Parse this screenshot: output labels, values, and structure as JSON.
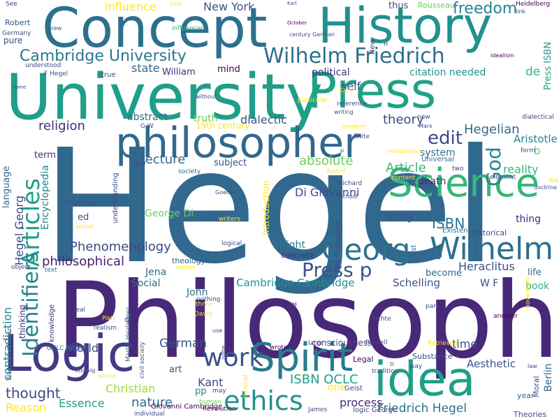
{
  "words": [
    {
      "text": "Hegel",
      "color": "#31688e",
      "vertical": false
    },
    {
      "text": "Philosophy",
      "color": "#482878",
      "vertical": false
    },
    {
      "text": "University",
      "color": "#1f9e89",
      "vertical": false
    },
    {
      "text": "Concept",
      "color": "#2d708e",
      "vertical": false
    },
    {
      "text": "History",
      "color": "#21918c",
      "vertical": false
    },
    {
      "text": "Press",
      "color": "#1fa187",
      "vertical": false
    },
    {
      "text": "philosopher",
      "color": "#31688e",
      "vertical": false
    },
    {
      "text": "Science",
      "color": "#35b779",
      "vertical": false
    },
    {
      "text": "Logic",
      "color": "#443983",
      "vertical": false
    },
    {
      "text": "idea",
      "color": "#1f9e89",
      "vertical": false
    },
    {
      "text": "Spirit",
      "color": "#287c8e",
      "vertical": false
    },
    {
      "text": "Wilhelm",
      "color": "#2d708e",
      "vertical": false
    },
    {
      "text": "Georg",
      "color": "#2c728e",
      "vertical": false
    },
    {
      "text": "ethics",
      "color": "#21918c",
      "vertical": false
    },
    {
      "text": "work",
      "color": "#3b528b",
      "vertical": false
    },
    {
      "text": "Wilhelm Friedrich",
      "color": "#2d708e",
      "vertical": false
    },
    {
      "text": "Articles",
      "color": "#1f9e89",
      "vertical": true
    },
    {
      "text": "Identifiers",
      "color": "#26828e",
      "vertical": true
    },
    {
      "text": "Cambridge University",
      "color": "#2a788e",
      "vertical": false
    },
    {
      "text": "edit",
      "color": "#3e4989",
      "vertical": false
    },
    {
      "text": "God",
      "color": "#25848e",
      "vertical": true
    },
    {
      "text": "Press p",
      "color": "#3b528b",
      "vertical": false
    },
    {
      "text": "freedom",
      "color": "#25848e",
      "vertical": false
    },
    {
      "text": "Hegel Georg",
      "color": "#3e4989",
      "vertical": true
    },
    {
      "text": "religion",
      "color": "#472d7b",
      "vertical": false
    },
    {
      "text": "Phenomenology",
      "color": "#3e4989",
      "vertical": false
    },
    {
      "text": "philosophical",
      "color": "#481f70",
      "vertical": false
    },
    {
      "text": "thought",
      "color": "#3e4989",
      "vertical": false
    },
    {
      "text": "Hegelian",
      "color": "#31688e",
      "vertical": false
    },
    {
      "text": "ISBN",
      "color": "#2c728e",
      "vertical": false
    },
    {
      "text": "ISBN OCLC",
      "color": "#1f9e89",
      "vertical": false
    },
    {
      "text": "Article",
      "color": "#35b779",
      "vertical": false
    },
    {
      "text": "state",
      "color": "#31688e",
      "vertical": false
    },
    {
      "text": "theory",
      "color": "#3e4989",
      "vertical": false
    },
    {
      "text": "German",
      "color": "#3b528b",
      "vertical": false
    },
    {
      "text": "absolute",
      "color": "#6ece58",
      "vertical": false
    },
    {
      "text": "Lecture",
      "color": "#31688e",
      "vertical": false
    },
    {
      "text": "contradiction",
      "color": "#25848e",
      "vertical": true
    },
    {
      "text": "Cambridge Cambridge",
      "color": "#21918c",
      "vertical": false
    },
    {
      "text": "Friedrich Hegel",
      "color": "#2c728e",
      "vertical": false
    },
    {
      "text": "Aesthetic",
      "color": "#3b528b",
      "vertical": false
    },
    {
      "text": "Schelling",
      "color": "#3b528b",
      "vertical": false
    },
    {
      "text": "reality",
      "color": "#35b779",
      "vertical": false
    },
    {
      "text": "Aristotle",
      "color": "#25848e",
      "vertical": false
    },
    {
      "text": "Encyclopedia",
      "color": "#26828e",
      "vertical": true
    },
    {
      "text": "dialectic",
      "color": "#3b528b",
      "vertical": false
    },
    {
      "text": "self",
      "color": "#3e4989",
      "vertical": false
    },
    {
      "text": "political",
      "color": "#472d7b",
      "vertical": false
    },
    {
      "text": "citation needed",
      "color": "#21918c",
      "vertical": false
    },
    {
      "text": "de",
      "color": "#35b779",
      "vertical": false
    },
    {
      "text": "truth",
      "color": "#6ece58",
      "vertical": false
    },
    {
      "text": "abstract",
      "color": "#31688e",
      "vertical": false
    },
    {
      "text": "Di Giovanni",
      "color": "#3e4989",
      "vertical": false
    },
    {
      "text": "unity",
      "color": "#3b528b",
      "vertical": false
    },
    {
      "text": "death",
      "color": "#481f70",
      "vertical": false
    },
    {
      "text": "thing",
      "color": "#482878",
      "vertical": false
    },
    {
      "text": "Right",
      "color": "#26828e",
      "vertical": false
    },
    {
      "text": "Introduction",
      "color": "#fde725",
      "vertical": true
    },
    {
      "text": "Kant",
      "color": "#3e4989",
      "vertical": false
    },
    {
      "text": "nature",
      "color": "#31688e",
      "vertical": false
    },
    {
      "text": "Essence",
      "color": "#1f9e89",
      "vertical": false
    },
    {
      "text": "Christian",
      "color": "#9fda3a",
      "vertical": false
    },
    {
      "text": "process",
      "color": "#482878",
      "vertical": false
    },
    {
      "text": "time",
      "color": "#3b528b",
      "vertical": false
    },
    {
      "text": "world",
      "color": "#3e4989",
      "vertical": false
    },
    {
      "text": "Reason",
      "color": "#fde725",
      "vertical": false
    },
    {
      "text": "Heraclitus",
      "color": "#3b528b",
      "vertical": false
    },
    {
      "text": "Berlin",
      "color": "#31688e",
      "vertical": true
    },
    {
      "text": "New York",
      "color": "#3b528b",
      "vertical": false
    },
    {
      "text": "influence",
      "color": "#fde725",
      "vertical": false
    },
    {
      "text": "Social",
      "color": "#31688e",
      "vertical": false
    },
    {
      "text": "Jena",
      "color": "#31688e",
      "vertical": false
    },
    {
      "text": "John",
      "color": "#2d708e",
      "vertical": false
    },
    {
      "text": "George Di",
      "color": "#6ece58",
      "vertical": false
    },
    {
      "text": "Press ISBN",
      "color": "#1f9e89",
      "vertical": true
    },
    {
      "text": "system",
      "color": "#2c728e",
      "vertical": false
    },
    {
      "text": "subject",
      "color": "#3b528b",
      "vertical": false
    },
    {
      "text": "language",
      "color": "#31688e",
      "vertical": true
    },
    {
      "text": "W F",
      "color": "#3e4989",
      "vertical": false
    },
    {
      "text": "pp",
      "color": "#26828e",
      "vertical": false
    },
    {
      "text": "ed",
      "color": "#3b528b",
      "vertical": false
    },
    {
      "text": "book",
      "color": "#35b779",
      "vertical": false
    },
    {
      "text": "William",
      "color": "#472d7b",
      "vertical": false
    },
    {
      "text": "mind",
      "color": "#440154",
      "vertical": false
    },
    {
      "text": "pure",
      "color": "#3e4989",
      "vertical": false
    },
    {
      "text": "Robert",
      "color": "#3b528b",
      "vertical": false
    },
    {
      "text": "thus",
      "color": "#3e4989",
      "vertical": false
    },
    {
      "text": "Rousseau",
      "color": "#6ece58",
      "vertical": false
    },
    {
      "text": "life",
      "color": "#31688e",
      "vertical": false
    },
    {
      "text": "art",
      "color": "#3e4989",
      "vertical": false
    },
    {
      "text": "one",
      "color": "#fde725",
      "vertical": false
    },
    {
      "text": "become",
      "color": "#31688e",
      "vertical": false
    },
    {
      "text": "b",
      "color": "#6ece58",
      "vertical": false
    },
    {
      "text": "term",
      "color": "#472d7b",
      "vertical": false
    },
    {
      "text": "19th century",
      "color": "#fde725",
      "vertical": false
    },
    {
      "text": "theology",
      "color": "#31688e",
      "vertical": false
    },
    {
      "text": "concrete",
      "color": "#472d7b",
      "vertical": false
    },
    {
      "text": "first",
      "color": "#31688e",
      "vertical": true
    },
    {
      "text": "Universal",
      "color": "#31688e",
      "vertical": false
    },
    {
      "text": "consciousness",
      "color": "#3e4989",
      "vertical": false
    },
    {
      "text": "Substance",
      "color": "#3e4989",
      "vertical": false
    },
    {
      "text": "Existence",
      "color": "#2c728e",
      "vertical": false
    },
    {
      "text": "historical",
      "color": "#3e4989",
      "vertical": false
    },
    {
      "text": "Legal",
      "color": "#440154",
      "vertical": false
    },
    {
      "text": "James",
      "color": "#3e4989",
      "vertical": false
    },
    {
      "text": "Theories",
      "color": "#3e4989",
      "vertical": false
    },
    {
      "text": "year",
      "color": "#31688e",
      "vertical": false
    },
    {
      "text": "Moral",
      "color": "#3e4989",
      "vertical": true
    },
    {
      "text": "thinking",
      "color": "#472d7b",
      "vertical": true
    },
    {
      "text": "knowledge",
      "color": "#472d7b",
      "vertical": true
    },
    {
      "text": "movement",
      "color": "#fde725",
      "vertical": true
    },
    {
      "text": "understanding",
      "color": "#3e4989",
      "vertical": true
    },
    {
      "text": "Martin Heidegger",
      "color": "#31688e",
      "vertical": true
    },
    {
      "text": "Walter Kaufmann",
      "color": "#31688e",
      "vertical": true
    },
    {
      "text": "Giovanni Cambridge",
      "color": "#440154",
      "vertical": false
    },
    {
      "text": "logic George",
      "color": "#3e4989",
      "vertical": false
    },
    {
      "text": "individual",
      "color": "#3e4989",
      "vertical": false
    },
    {
      "text": "Revolution",
      "color": "#440154",
      "vertical": false
    },
    {
      "text": "Geist",
      "color": "#3e4989",
      "vertical": false
    },
    {
      "text": "tradition",
      "color": "#3e4989",
      "vertical": false
    },
    {
      "text": "wrote",
      "color": "#440154",
      "vertical": false
    },
    {
      "text": "later",
      "color": "#3e4989",
      "vertical": false
    },
    {
      "text": "Russell",
      "color": "#3e4989",
      "vertical": false
    },
    {
      "text": "Retrieved",
      "color": "#fde725",
      "vertical": false
    },
    {
      "text": "part",
      "color": "#3e4989",
      "vertical": false
    },
    {
      "text": "way",
      "color": "#3e4989",
      "vertical": false
    },
    {
      "text": "law",
      "color": "#3e4989",
      "vertical": false
    },
    {
      "text": "another",
      "color": "#440154",
      "vertical": false
    },
    {
      "text": "note",
      "color": "#3e4989",
      "vertical": true
    },
    {
      "text": "rational",
      "color": "#fde725",
      "vertical": true
    },
    {
      "text": "human",
      "color": "#6ece58",
      "vertical": false
    },
    {
      "text": "may",
      "color": "#3e4989",
      "vertical": false
    },
    {
      "text": "three",
      "color": "#fde725",
      "vertical": false
    },
    {
      "text": "David",
      "color": "#fde725",
      "vertical": false
    },
    {
      "text": "nothing",
      "color": "#3e4989",
      "vertical": false
    },
    {
      "text": "within",
      "color": "#fde725",
      "vertical": false
    },
    {
      "text": "logical",
      "color": "#3e4989",
      "vertical": false
    },
    {
      "text": "writers",
      "color": "#fde725",
      "vertical": false
    },
    {
      "text": "Goethe",
      "color": "#3e4989",
      "vertical": false
    },
    {
      "text": "becoming",
      "color": "#3e4989",
      "vertical": false
    },
    {
      "text": "sense",
      "color": "#fde725",
      "vertical": false
    },
    {
      "text": "object",
      "color": "#3e4989",
      "vertical": false
    },
    {
      "text": "text",
      "color": "#31688e",
      "vertical": false
    },
    {
      "text": "realism",
      "color": "#3e4989",
      "vertical": false
    },
    {
      "text": "OCLC Hegel",
      "color": "#31688e",
      "vertical": false
    },
    {
      "text": "Ludwig",
      "color": "#3e4989",
      "vertical": false
    },
    {
      "text": "und",
      "color": "#3e4989",
      "vertical": false
    },
    {
      "text": "G W",
      "color": "#3e4989",
      "vertical": false
    },
    {
      "text": "society",
      "color": "#31688e",
      "vertical": false
    },
    {
      "text": "See",
      "color": "#3e4989",
      "vertical": false
    },
    {
      "text": "Germany",
      "color": "#3e4989",
      "vertical": false
    },
    {
      "text": "understood",
      "color": "#3e4989",
      "vertical": false
    },
    {
      "text": "F Hegel",
      "color": "#3e4989",
      "vertical": false
    },
    {
      "text": "true",
      "color": "#3e4989",
      "vertical": false
    },
    {
      "text": "view",
      "color": "#3e4989",
      "vertical": false
    },
    {
      "text": "influenced",
      "color": "#35b779",
      "vertical": false
    },
    {
      "text": "fully",
      "color": "#fde725",
      "vertical": false
    },
    {
      "text": "Karl",
      "color": "#3e4989",
      "vertical": false
    },
    {
      "text": "October",
      "color": "#440154",
      "vertical": false
    },
    {
      "text": "century German",
      "color": "#3e4989",
      "vertical": false
    },
    {
      "text": "Heidelberg",
      "color": "#440154",
      "vertical": false
    },
    {
      "text": "link",
      "color": "#3e4989",
      "vertical": false
    },
    {
      "text": "idealism",
      "color": "#440154",
      "vertical": false
    },
    {
      "text": "reference",
      "color": "#3e4989",
      "vertical": false
    },
    {
      "text": "Early",
      "color": "#fde725",
      "vertical": false
    },
    {
      "text": "writing",
      "color": "#3e4989",
      "vertical": false
    },
    {
      "text": "particular",
      "color": "#fde725",
      "vertical": false
    },
    {
      "text": "without",
      "color": "#3e4989",
      "vertical": false
    },
    {
      "text": "come",
      "color": "#3e4989",
      "vertical": false
    },
    {
      "text": "now",
      "color": "#3e4989",
      "vertical": false
    },
    {
      "text": "Marx",
      "color": "#3e4989",
      "vertical": false
    },
    {
      "text": "dialectical",
      "color": "#3e4989",
      "vertical": false
    },
    {
      "text": "finite",
      "color": "#3e4989",
      "vertical": false
    },
    {
      "text": "modern",
      "color": "#fde725",
      "vertical": false
    },
    {
      "text": "metaphysics",
      "color": "#fde725",
      "vertical": false
    },
    {
      "text": "form",
      "color": "#3e4989",
      "vertical": false
    },
    {
      "text": "August",
      "color": "#fde725",
      "vertical": false
    },
    {
      "text": "two",
      "color": "#3e4989",
      "vertical": false
    },
    {
      "text": "content",
      "color": "#fde725",
      "vertical": false
    },
    {
      "text": "Richard",
      "color": "#3e4989",
      "vertical": false
    },
    {
      "text": "School",
      "color": "#3e4989",
      "vertical": false
    },
    {
      "text": "critical",
      "color": "#3e4989",
      "vertical": false
    },
    {
      "text": "element",
      "color": "#3e4989",
      "vertical": false
    },
    {
      "text": "Wikipedia",
      "color": "#fde725",
      "vertical": false
    },
    {
      "text": "doctrine",
      "color": "#3e4989",
      "vertical": false
    },
    {
      "text": "der Philosophie",
      "color": "#3e4989",
      "vertical": true
    },
    {
      "text": "M",
      "color": "#3e4989",
      "vertical": false
    },
    {
      "text": "Fichte",
      "color": "#3e4989",
      "vertical": false
    },
    {
      "text": "civil society",
      "color": "#3e4989",
      "vertical": true
    },
    {
      "text": "take",
      "color": "#fde725",
      "vertical": true
    },
    {
      "text": "use",
      "color": "#3e4989",
      "vertical": false
    },
    {
      "text": "whose",
      "color": "#fde725",
      "vertical": false
    },
    {
      "text": "Plato",
      "color": "#fde725",
      "vertical": false
    },
    {
      "text": "real",
      "color": "#3e4989",
      "vertical": false
    },
    {
      "text": "G",
      "color": "#3e4989",
      "vertical": false
    },
    {
      "text": "tr",
      "color": "#3e4989",
      "vertical": false
    },
    {
      "text": "New",
      "color": "#3e4989",
      "vertical": true
    },
    {
      "text": "H",
      "color": "#3e4989",
      "vertical": false
    },
    {
      "text": "p",
      "color": "#3e4989",
      "vertical": false
    },
    {
      "text": "J",
      "color": "#3e4989",
      "vertical": false
    },
    {
      "text": "mong",
      "color": "#fde725",
      "vertical": true
    }
  ]
}
